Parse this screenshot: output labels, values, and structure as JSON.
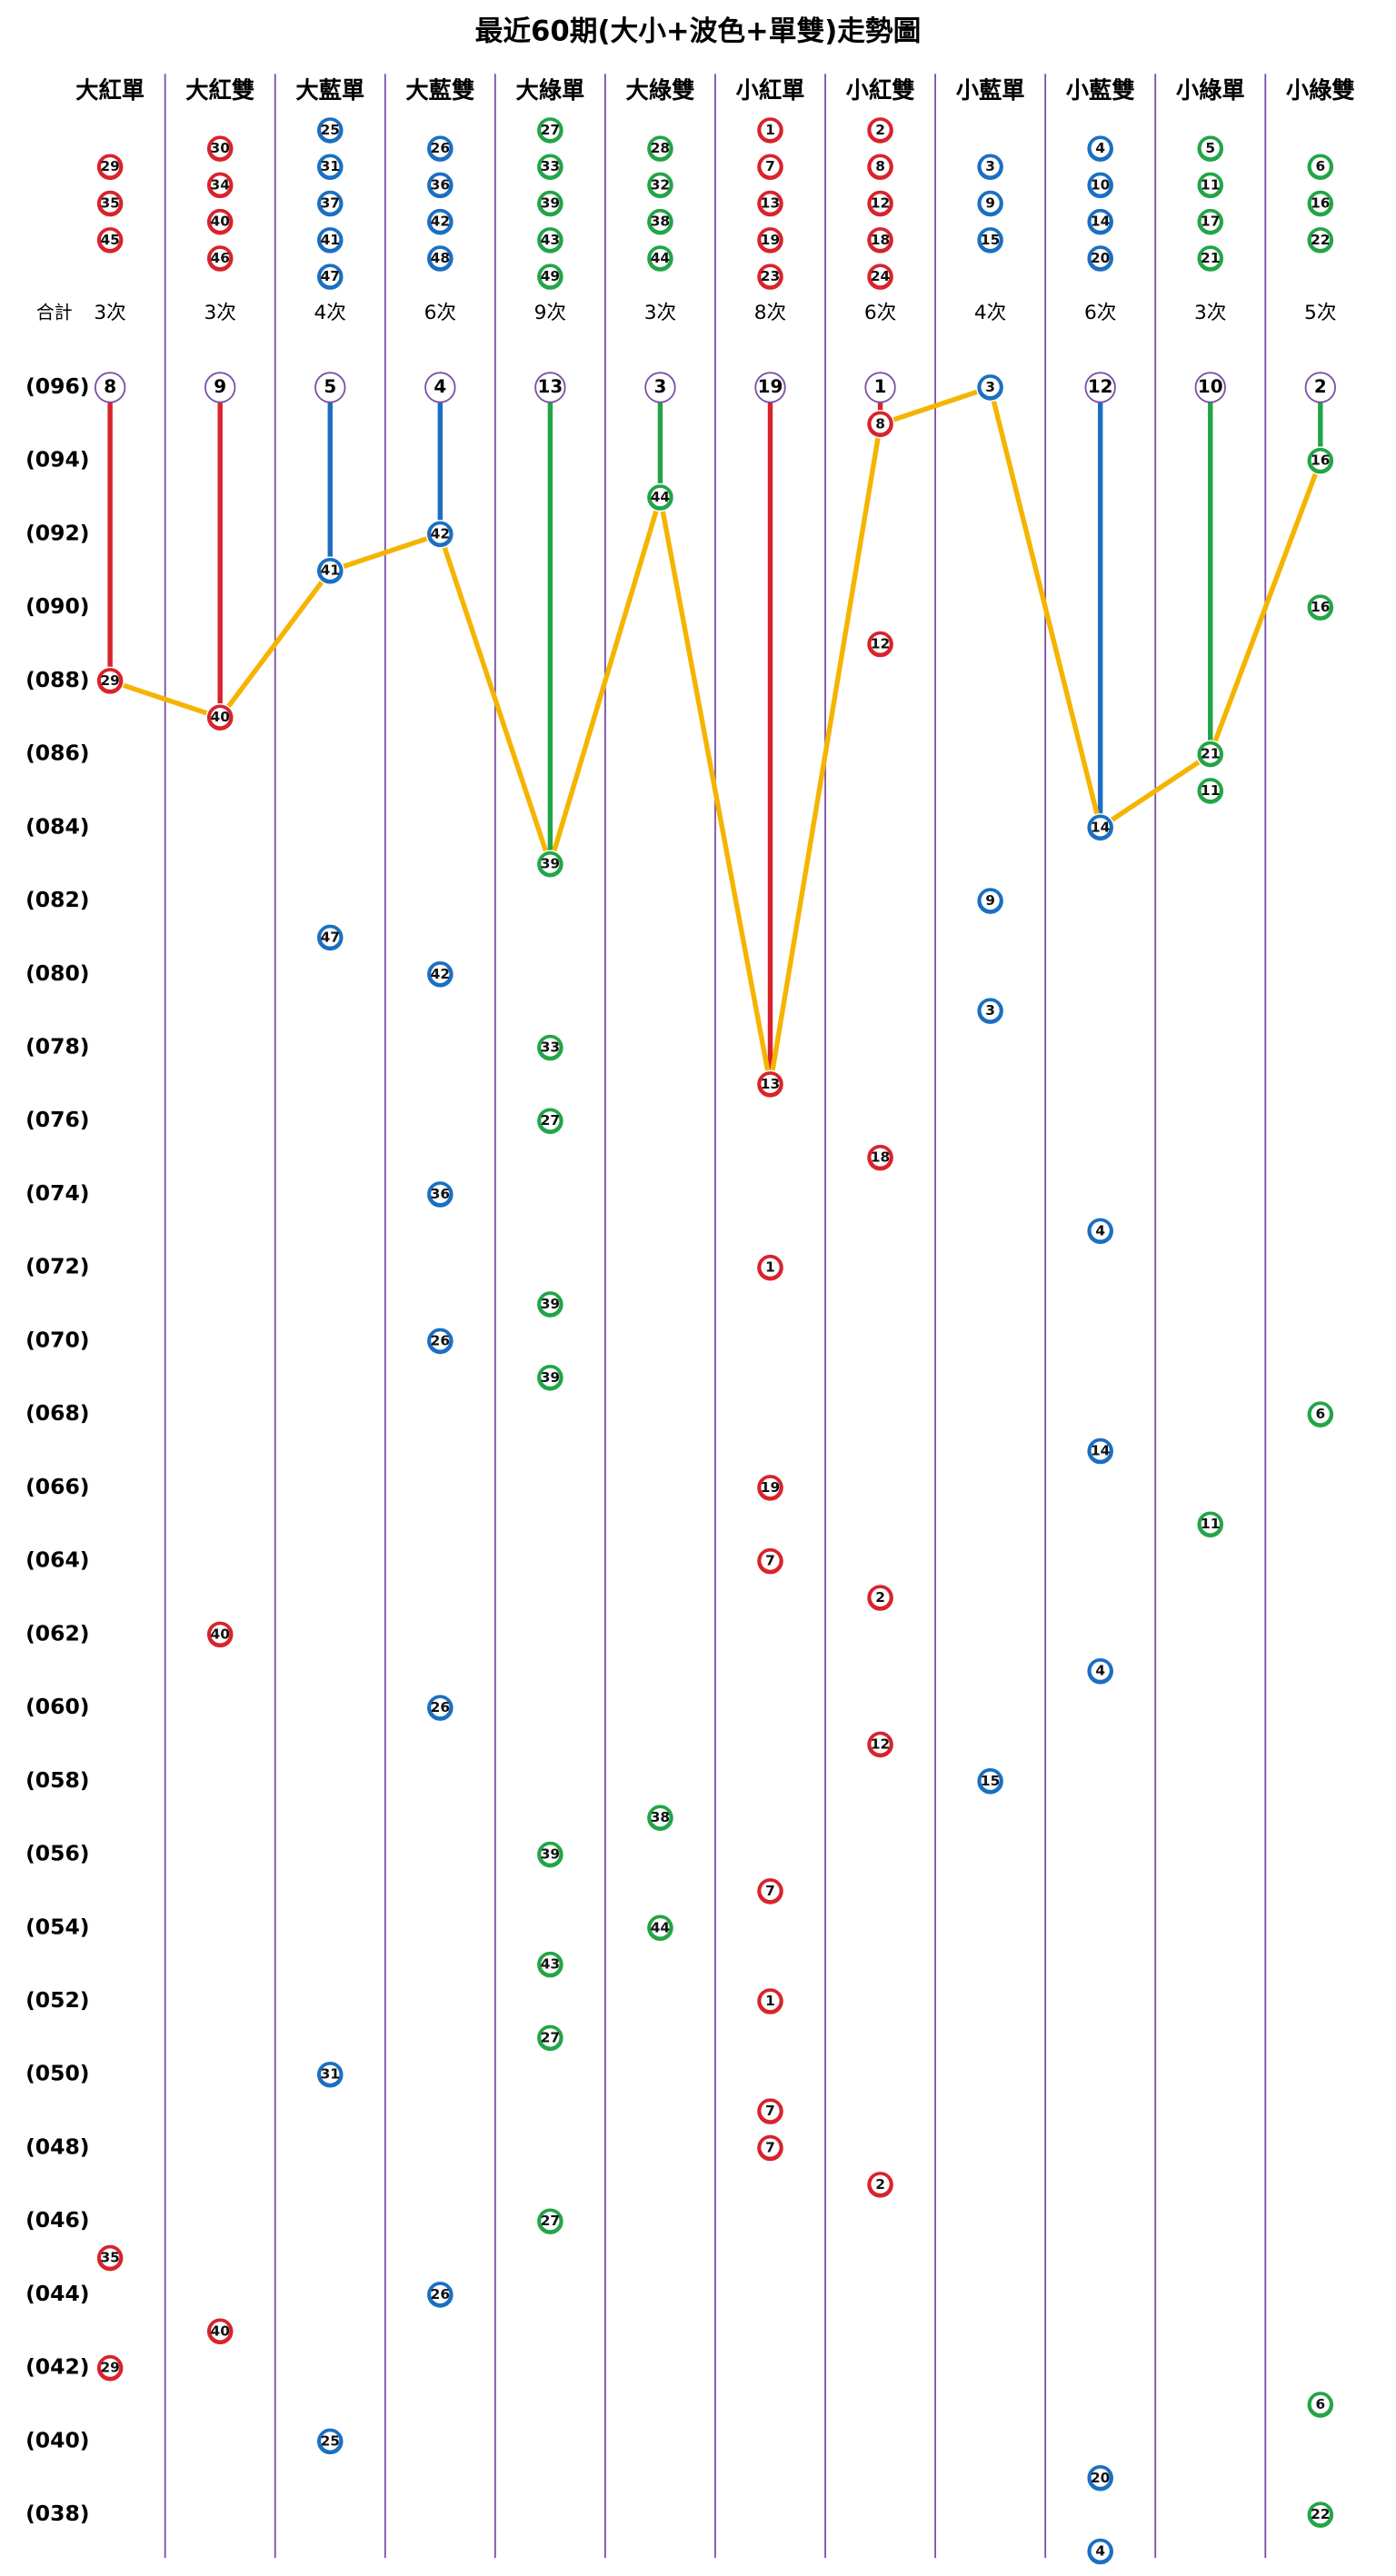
{
  "chart_data": {
    "type": "trend",
    "title": "最近60期(大小+波色+單雙)走勢圖",
    "total_label": "合計",
    "ylim": [
      96,
      37
    ],
    "yticks": [
      {
        "value": 96,
        "label": "(096)"
      },
      {
        "value": 94,
        "label": "(094)"
      },
      {
        "value": 92,
        "label": "(092)"
      },
      {
        "value": 90,
        "label": "(090)"
      },
      {
        "value": 88,
        "label": "(088)"
      },
      {
        "value": 86,
        "label": "(086)"
      },
      {
        "value": 84,
        "label": "(084)"
      },
      {
        "value": 82,
        "label": "(082)"
      },
      {
        "value": 80,
        "label": "(080)"
      },
      {
        "value": 78,
        "label": "(078)"
      },
      {
        "value": 76,
        "label": "(076)"
      },
      {
        "value": 74,
        "label": "(074)"
      },
      {
        "value": 72,
        "label": "(072)"
      },
      {
        "value": 70,
        "label": "(070)"
      },
      {
        "value": 68,
        "label": "(068)"
      },
      {
        "value": 66,
        "label": "(066)"
      },
      {
        "value": 64,
        "label": "(064)"
      },
      {
        "value": 62,
        "label": "(062)"
      },
      {
        "value": 60,
        "label": "(060)"
      },
      {
        "value": 58,
        "label": "(058)"
      },
      {
        "value": 56,
        "label": "(056)"
      },
      {
        "value": 54,
        "label": "(054)"
      },
      {
        "value": 52,
        "label": "(052)"
      },
      {
        "value": 50,
        "label": "(050)"
      },
      {
        "value": 48,
        "label": "(048)"
      },
      {
        "value": 46,
        "label": "(046)"
      },
      {
        "value": 44,
        "label": "(044)"
      },
      {
        "value": 42,
        "label": "(042)"
      },
      {
        "value": 40,
        "label": "(040)"
      },
      {
        "value": 38,
        "label": "(038)"
      }
    ],
    "trend_color": "#f5b400",
    "columns": [
      {
        "name": "大紅單",
        "color": "#d9232b",
        "numbers": [
          29,
          35,
          45
        ],
        "count_label": "3次",
        "miss": 8,
        "hits": [
          {
            "period": 88,
            "number": 29
          },
          {
            "period": 45,
            "number": 35
          },
          {
            "period": 42,
            "number": 29
          }
        ]
      },
      {
        "name": "大紅雙",
        "color": "#d9232b",
        "numbers": [
          30,
          34,
          40,
          46
        ],
        "count_label": "3次",
        "miss": 9,
        "hits": [
          {
            "period": 87,
            "number": 40
          },
          {
            "period": 62,
            "number": 40
          },
          {
            "period": 43,
            "number": 40
          }
        ]
      },
      {
        "name": "大藍單",
        "color": "#1b6fc2",
        "numbers": [
          25,
          31,
          37,
          41,
          47
        ],
        "count_label": "4次",
        "miss": 5,
        "hits": [
          {
            "period": 91,
            "number": 41
          },
          {
            "period": 81,
            "number": 47
          },
          {
            "period": 50,
            "number": 31
          },
          {
            "period": 40,
            "number": 25
          }
        ]
      },
      {
        "name": "大藍雙",
        "color": "#1b6fc2",
        "numbers": [
          26,
          36,
          42,
          48
        ],
        "count_label": "6次",
        "miss": 4,
        "hits": [
          {
            "period": 92,
            "number": 42
          },
          {
            "period": 80,
            "number": 42
          },
          {
            "period": 74,
            "number": 36
          },
          {
            "period": 70,
            "number": 26
          },
          {
            "period": 60,
            "number": 26
          },
          {
            "period": 44,
            "number": 26
          }
        ]
      },
      {
        "name": "大綠單",
        "color": "#22a546",
        "numbers": [
          27,
          33,
          39,
          43,
          49
        ],
        "count_label": "9次",
        "miss": 13,
        "hits": [
          {
            "period": 83,
            "number": 39
          },
          {
            "period": 78,
            "number": 33
          },
          {
            "period": 76,
            "number": 27
          },
          {
            "period": 71,
            "number": 39
          },
          {
            "period": 69,
            "number": 39
          },
          {
            "period": 56,
            "number": 39
          },
          {
            "period": 53,
            "number": 43
          },
          {
            "period": 51,
            "number": 27
          },
          {
            "period": 46,
            "number": 27
          }
        ]
      },
      {
        "name": "大綠雙",
        "color": "#22a546",
        "numbers": [
          28,
          32,
          38,
          44
        ],
        "count_label": "3次",
        "miss": 3,
        "hits": [
          {
            "period": 93,
            "number": 44
          },
          {
            "period": 57,
            "number": 38
          },
          {
            "period": 54,
            "number": 44
          }
        ]
      },
      {
        "name": "小紅單",
        "color": "#d9232b",
        "numbers": [
          1,
          7,
          13,
          19,
          23
        ],
        "count_label": "8次",
        "miss": 19,
        "hits": [
          {
            "period": 77,
            "number": 13
          },
          {
            "period": 72,
            "number": 1
          },
          {
            "period": 66,
            "number": 19
          },
          {
            "period": 64,
            "number": 7
          },
          {
            "period": 55,
            "number": 7
          },
          {
            "period": 52,
            "number": 1
          },
          {
            "period": 49,
            "number": 7
          },
          {
            "period": 48,
            "number": 7
          }
        ]
      },
      {
        "name": "小紅雙",
        "color": "#d9232b",
        "numbers": [
          2,
          8,
          12,
          18,
          24
        ],
        "count_label": "6次",
        "miss": 1,
        "hits": [
          {
            "period": 95,
            "number": 8
          },
          {
            "period": 89,
            "number": 12
          },
          {
            "period": 75,
            "number": 18
          },
          {
            "period": 63,
            "number": 2
          },
          {
            "period": 59,
            "number": 12
          },
          {
            "period": 47,
            "number": 2
          }
        ]
      },
      {
        "name": "小藍單",
        "color": "#1b6fc2",
        "numbers": [
          3,
          9,
          15
        ],
        "count_label": "4次",
        "miss": null,
        "hits": [
          {
            "period": 96,
            "number": 3
          },
          {
            "period": 82,
            "number": 9
          },
          {
            "period": 79,
            "number": 3
          },
          {
            "period": 58,
            "number": 15
          }
        ]
      },
      {
        "name": "小藍雙",
        "color": "#1b6fc2",
        "numbers": [
          4,
          10,
          14,
          20
        ],
        "count_label": "6次",
        "miss": 12,
        "hits": [
          {
            "period": 84,
            "number": 14
          },
          {
            "period": 73,
            "number": 4
          },
          {
            "period": 67,
            "number": 14
          },
          {
            "period": 61,
            "number": 4
          },
          {
            "period": 39,
            "number": 20
          },
          {
            "period": 37,
            "number": 4
          }
        ]
      },
      {
        "name": "小綠單",
        "color": "#22a546",
        "numbers": [
          5,
          11,
          17,
          21
        ],
        "count_label": "3次",
        "miss": 10,
        "hits": [
          {
            "period": 86,
            "number": 21
          },
          {
            "period": 85,
            "number": 11
          },
          {
            "period": 65,
            "number": 11
          }
        ]
      },
      {
        "name": "小綠雙",
        "color": "#22a546",
        "numbers": [
          6,
          16,
          22
        ],
        "count_label": "5次",
        "miss": 2,
        "hits": [
          {
            "period": 94,
            "number": 16
          },
          {
            "period": 90,
            "number": 16
          },
          {
            "period": 68,
            "number": 6
          },
          {
            "period": 41,
            "number": 6
          },
          {
            "period": 38,
            "number": 22
          }
        ]
      }
    ]
  }
}
